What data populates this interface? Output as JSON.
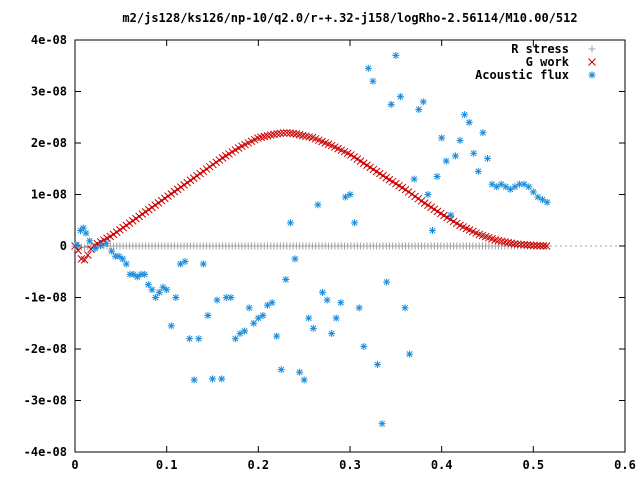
{
  "chart_data": {
    "type": "scatter",
    "title": "m2/js128/ks126/np-10/q2.0/r-+.32-j158/logRho-2.56114/M10.00/512",
    "xlabel": "",
    "ylabel": "",
    "xlim": [
      0,
      0.6
    ],
    "ylim": [
      -4e-08,
      4e-08
    ],
    "x_ticks": [
      0,
      0.1,
      0.2,
      0.3,
      0.4,
      0.5,
      0.6
    ],
    "x_tick_labels": [
      "0",
      "0.1",
      "0.2",
      "0.3",
      "0.4",
      "0.5",
      "0.6"
    ],
    "y_ticks": [
      -4e-08,
      -3e-08,
      -2e-08,
      -1e-08,
      0,
      1e-08,
      2e-08,
      3e-08,
      4e-08
    ],
    "y_tick_labels": [
      "-4e-08",
      "-3e-08",
      "-2e-08",
      "-1e-08",
      "0",
      "1e-08",
      "2e-08",
      "3e-08",
      "4e-08"
    ],
    "grid": false,
    "legend_position": "top-right",
    "x_range": [
      0,
      0.515
    ],
    "series": [
      {
        "name": "R stress",
        "marker": "plus",
        "color": "#a0a0a0",
        "x": [
          0.0,
          0.004,
          0.008,
          0.012,
          0.016,
          0.02,
          0.025,
          0.03,
          0.035,
          0.04,
          0.06,
          0.08,
          0.1,
          0.15,
          0.2,
          0.25,
          0.3,
          0.35,
          0.4,
          0.45,
          0.5,
          0.515
        ],
        "y": [
          0.0,
          -1e-10,
          -2e-10,
          -3e-10,
          0.0,
          0.0,
          0.0,
          0.0,
          0.0,
          0.0,
          0.0,
          0.0,
          0.0,
          0.0,
          0.0,
          0.0,
          0.0,
          0.0,
          0.0,
          0.0,
          0.0,
          0.0
        ]
      },
      {
        "name": "G work",
        "marker": "cross",
        "color": "#cc0000",
        "x": [
          0.0,
          0.004,
          0.008,
          0.012,
          0.016,
          0.02,
          0.03,
          0.04,
          0.06,
          0.08,
          0.1,
          0.12,
          0.14,
          0.16,
          0.18,
          0.2,
          0.22,
          0.23,
          0.24,
          0.26,
          0.28,
          0.3,
          0.32,
          0.34,
          0.36,
          0.38,
          0.4,
          0.42,
          0.44,
          0.46,
          0.48,
          0.5,
          0.515
        ],
        "y": [
          0.0,
          -1e-09,
          -3e-09,
          -2.5e-09,
          -1e-09,
          0.0,
          1e-09,
          2e-09,
          4.5e-09,
          7e-09,
          9.5e-09,
          1.2e-08,
          1.45e-08,
          1.7e-08,
          1.92e-08,
          2.1e-08,
          2.18e-08,
          2.2e-08,
          2.18e-08,
          2.1e-08,
          1.95e-08,
          1.78e-08,
          1.55e-08,
          1.32e-08,
          1.1e-08,
          8.5e-09,
          6.2e-09,
          4e-09,
          2.3e-09,
          1.1e-09,
          4e-10,
          1e-10,
          0.0
        ]
      },
      {
        "name": "Acoustic flux",
        "marker": "star",
        "color": "#1a8cdc",
        "x": [
          0.002,
          0.006,
          0.009,
          0.012,
          0.016,
          0.022,
          0.028,
          0.034,
          0.04,
          0.044,
          0.048,
          0.052,
          0.056,
          0.06,
          0.064,
          0.068,
          0.072,
          0.076,
          0.08,
          0.084,
          0.088,
          0.092,
          0.096,
          0.1,
          0.105,
          0.11,
          0.115,
          0.12,
          0.125,
          0.13,
          0.135,
          0.14,
          0.145,
          0.15,
          0.155,
          0.16,
          0.165,
          0.17,
          0.175,
          0.18,
          0.185,
          0.19,
          0.195,
          0.2,
          0.205,
          0.21,
          0.215,
          0.22,
          0.225,
          0.23,
          0.235,
          0.24,
          0.245,
          0.25,
          0.255,
          0.26,
          0.265,
          0.27,
          0.275,
          0.28,
          0.285,
          0.29,
          0.295,
          0.3,
          0.305,
          0.31,
          0.315,
          0.32,
          0.325,
          0.33,
          0.335,
          0.34,
          0.345,
          0.35,
          0.355,
          0.36,
          0.365,
          0.37,
          0.375,
          0.38,
          0.385,
          0.39,
          0.395,
          0.4,
          0.405,
          0.41,
          0.415,
          0.42,
          0.425,
          0.43,
          0.435,
          0.44,
          0.445,
          0.45,
          0.455,
          0.46,
          0.465,
          0.47,
          0.475,
          0.48,
          0.485,
          0.49,
          0.495,
          0.5,
          0.505,
          0.51,
          0.515
        ],
        "y": [
          2e-10,
          3e-09,
          3.5e-09,
          2.5e-09,
          1e-09,
          -5e-10,
          1e-10,
          5e-10,
          -1e-09,
          -2e-09,
          -2e-09,
          -2.5e-09,
          -3.5e-09,
          -5.5e-09,
          -5.5e-09,
          -6e-09,
          -5.5e-09,
          -5.5e-09,
          -7.5e-09,
          -8.5e-09,
          -1e-08,
          -9e-09,
          -8e-09,
          -8.5e-09,
          -1.55e-08,
          -1e-08,
          -3.5e-09,
          -3e-09,
          -1.8e-08,
          -2.6e-08,
          -1.8e-08,
          -3.5e-09,
          -1.35e-08,
          -2.58e-08,
          -1.05e-08,
          -2.58e-08,
          -1e-08,
          -1e-08,
          -1.8e-08,
          -1.7e-08,
          -1.65e-08,
          -1.2e-08,
          -1.5e-08,
          -1.4e-08,
          -1.35e-08,
          -1.15e-08,
          -1.1e-08,
          -1.75e-08,
          -2.4e-08,
          -6.5e-09,
          4.5e-09,
          -2.5e-09,
          -2.45e-08,
          -2.6e-08,
          -1.4e-08,
          -1.6e-08,
          8e-09,
          -9e-09,
          -1.05e-08,
          -1.7e-08,
          -1.4e-08,
          -1.1e-08,
          9.5e-09,
          1e-08,
          4.5e-09,
          -1.2e-08,
          -1.95e-08,
          3.45e-08,
          3.2e-08,
          -2.3e-08,
          -3.45e-08,
          -7e-09,
          2.75e-08,
          3.7e-08,
          2.9e-08,
          -1.2e-08,
          -2.1e-08,
          1.3e-08,
          2.65e-08,
          2.8e-08,
          1e-08,
          3e-09,
          1.35e-08,
          2.1e-08,
          1.65e-08,
          6e-09,
          1.75e-08,
          2.05e-08,
          2.55e-08,
          2.4e-08,
          1.8e-08,
          1.45e-08,
          2.2e-08,
          1.7e-08,
          1.2e-08,
          1.15e-08,
          1.2e-08,
          1.15e-08,
          1.1e-08,
          1.15e-08,
          1.2e-08,
          1.2e-08,
          1.15e-08,
          1.05e-08,
          9.5e-09,
          9e-09,
          8.5e-09
        ]
      }
    ]
  }
}
